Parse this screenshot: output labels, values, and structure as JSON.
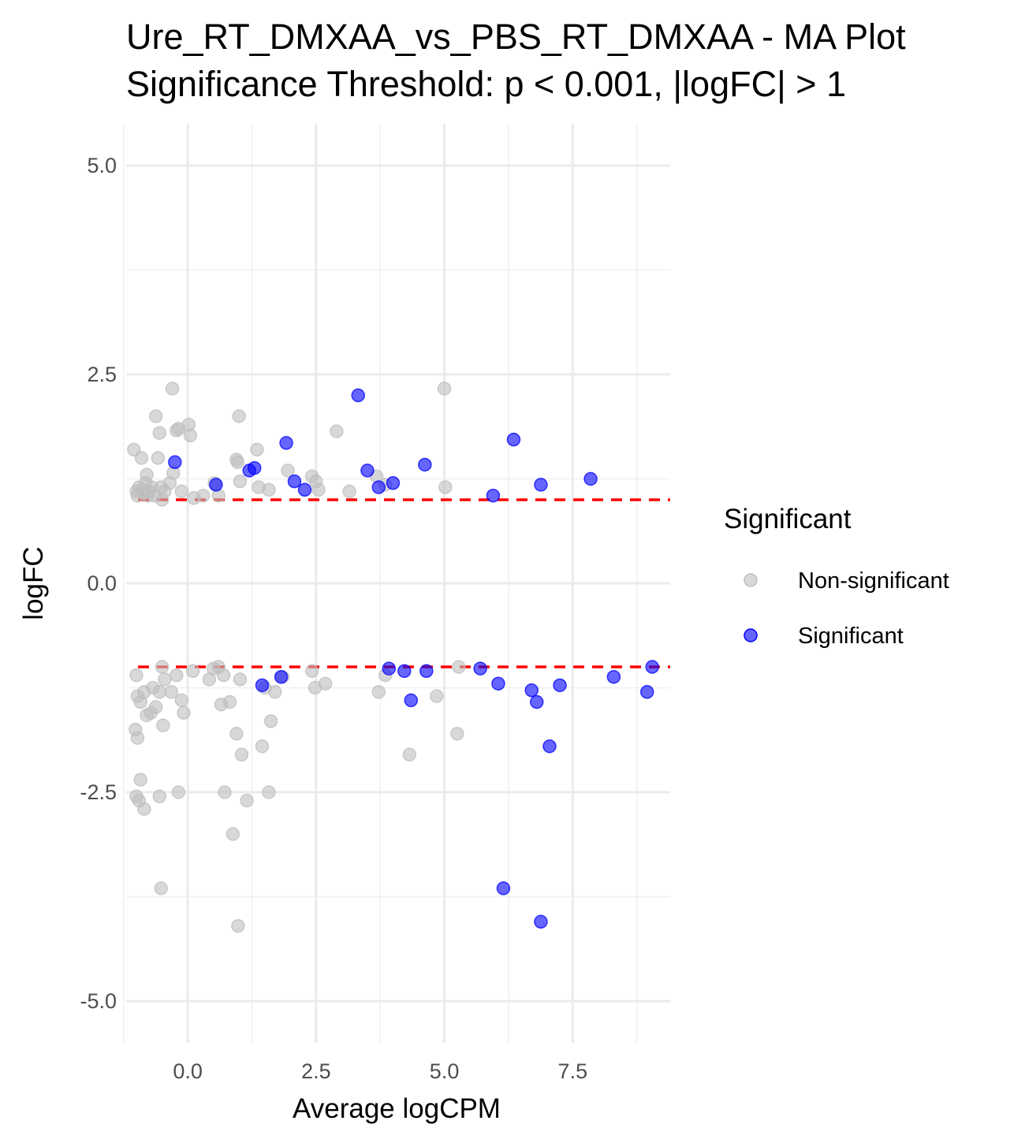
{
  "chart_data": {
    "type": "scatter",
    "title": "Ure_RT_DMXAA_vs_PBS_RT_DMXAA - MA Plot",
    "subtitle": "Significance Threshold: p < 0.001, |logFC| > 1",
    "xlabel": "Average logCPM",
    "ylabel": "logFC",
    "xlim": [
      -1.2,
      9.4
    ],
    "ylim": [
      -5.5,
      5.5
    ],
    "x_ticks": [
      0.0,
      2.5,
      5.0,
      7.5
    ],
    "x_tick_labels": [
      "0.0",
      "2.5",
      "5.0",
      "7.5"
    ],
    "y_ticks": [
      -5.0,
      -2.5,
      0.0,
      2.5,
      5.0
    ],
    "y_tick_labels": [
      "-5.0",
      "-2.5",
      "0.0",
      "2.5",
      "5.0"
    ],
    "grid": true,
    "threshold_lines": [
      1,
      -1
    ],
    "threshold_color": "#ff0000",
    "legend": {
      "title": "Significant",
      "position": "right",
      "entries": [
        {
          "name": "Non-significant",
          "color": "#bebebe"
        },
        {
          "name": "Significant",
          "color": "#0000ff"
        }
      ]
    },
    "series": [
      {
        "name": "Non-significant",
        "color": "#bebebe",
        "points": [
          [
            -1.05,
            1.6
          ],
          [
            -1.0,
            1.1
          ],
          [
            -0.98,
            1.05
          ],
          [
            -0.95,
            1.15
          ],
          [
            -0.9,
            1.5
          ],
          [
            -0.88,
            1.12
          ],
          [
            -0.85,
            1.08
          ],
          [
            -0.82,
            1.2
          ],
          [
            -0.8,
            1.3
          ],
          [
            -0.78,
            1.05
          ],
          [
            -0.75,
            1.1
          ],
          [
            -0.7,
            1.15
          ],
          [
            -0.65,
            1.05
          ],
          [
            -0.62,
            2.0
          ],
          [
            -0.58,
            1.5
          ],
          [
            -0.55,
            1.8
          ],
          [
            -0.52,
            1.15
          ],
          [
            -0.5,
            1.0
          ],
          [
            -0.45,
            1.1
          ],
          [
            -0.35,
            1.2
          ],
          [
            -0.3,
            2.33
          ],
          [
            -0.28,
            1.32
          ],
          [
            -0.22,
            1.83
          ],
          [
            -0.18,
            1.85
          ],
          [
            -0.12,
            1.1
          ],
          [
            0.02,
            1.9
          ],
          [
            0.05,
            1.77
          ],
          [
            0.12,
            1.02
          ],
          [
            0.3,
            1.05
          ],
          [
            0.52,
            1.2
          ],
          [
            0.6,
            1.05
          ],
          [
            0.95,
            1.48
          ],
          [
            0.97,
            1.45
          ],
          [
            1.0,
            2.0
          ],
          [
            1.02,
            1.22
          ],
          [
            1.35,
            1.6
          ],
          [
            1.38,
            1.15
          ],
          [
            1.58,
            1.12
          ],
          [
            1.95,
            1.35
          ],
          [
            2.42,
            1.28
          ],
          [
            2.5,
            1.22
          ],
          [
            2.55,
            1.12
          ],
          [
            2.9,
            1.82
          ],
          [
            3.15,
            1.1
          ],
          [
            3.68,
            1.28
          ],
          [
            3.85,
            1.18
          ],
          [
            5.0,
            2.33
          ],
          [
            5.02,
            1.15
          ],
          [
            -1.0,
            -1.1
          ],
          [
            -0.98,
            -1.35
          ],
          [
            -0.92,
            -1.42
          ],
          [
            -0.85,
            -1.3
          ],
          [
            -0.8,
            -1.58
          ],
          [
            -0.72,
            -1.55
          ],
          [
            -0.68,
            -1.25
          ],
          [
            -0.62,
            -1.48
          ],
          [
            -0.55,
            -1.3
          ],
          [
            -0.5,
            -1.0
          ],
          [
            -0.48,
            -1.7
          ],
          [
            -0.45,
            -1.15
          ],
          [
            -0.32,
            -1.3
          ],
          [
            -0.22,
            -1.1
          ],
          [
            -0.12,
            -1.4
          ],
          [
            -0.08,
            -1.55
          ],
          [
            0.1,
            -1.05
          ],
          [
            0.42,
            -1.15
          ],
          [
            0.5,
            -1.02
          ],
          [
            0.6,
            -1.0
          ],
          [
            0.65,
            -1.45
          ],
          [
            0.7,
            -1.1
          ],
          [
            0.82,
            -1.42
          ],
          [
            0.95,
            -1.8
          ],
          [
            1.02,
            -1.15
          ],
          [
            1.05,
            -2.05
          ],
          [
            1.45,
            -1.95
          ],
          [
            1.5,
            -1.25
          ],
          [
            1.62,
            -1.65
          ],
          [
            1.7,
            -1.3
          ],
          [
            1.85,
            -1.12
          ],
          [
            2.42,
            -1.05
          ],
          [
            2.48,
            -1.25
          ],
          [
            2.68,
            -1.2
          ],
          [
            3.72,
            -1.3
          ],
          [
            3.85,
            -1.1
          ],
          [
            4.32,
            -2.05
          ],
          [
            4.85,
            -1.35
          ],
          [
            5.25,
            -1.8
          ],
          [
            5.28,
            -1.0
          ],
          [
            -1.02,
            -1.75
          ],
          [
            -0.98,
            -1.85
          ],
          [
            -0.92,
            -2.35
          ],
          [
            -0.95,
            -2.6
          ],
          [
            -1.0,
            -2.55
          ],
          [
            -0.85,
            -2.7
          ],
          [
            -0.55,
            -2.55
          ],
          [
            -0.18,
            -2.5
          ],
          [
            0.72,
            -2.5
          ],
          [
            0.88,
            -3.0
          ],
          [
            1.15,
            -2.6
          ],
          [
            1.58,
            -2.5
          ],
          [
            -0.52,
            -3.65
          ],
          [
            0.98,
            -4.1
          ]
        ]
      },
      {
        "name": "Significant",
        "color": "#0000ff",
        "points": [
          [
            -0.25,
            1.45
          ],
          [
            0.55,
            1.18
          ],
          [
            1.2,
            1.35
          ],
          [
            1.3,
            1.38
          ],
          [
            1.92,
            1.68
          ],
          [
            2.08,
            1.22
          ],
          [
            2.28,
            1.12
          ],
          [
            3.32,
            2.25
          ],
          [
            3.5,
            1.35
          ],
          [
            3.72,
            1.15
          ],
          [
            4.0,
            1.2
          ],
          [
            4.62,
            1.42
          ],
          [
            5.95,
            1.05
          ],
          [
            6.35,
            1.72
          ],
          [
            6.88,
            1.18
          ],
          [
            7.85,
            1.25
          ],
          [
            1.45,
            -1.22
          ],
          [
            1.82,
            -1.12
          ],
          [
            3.92,
            -1.02
          ],
          [
            4.22,
            -1.05
          ],
          [
            4.35,
            -1.4
          ],
          [
            4.65,
            -1.05
          ],
          [
            5.7,
            -1.02
          ],
          [
            6.05,
            -1.2
          ],
          [
            6.7,
            -1.28
          ],
          [
            6.8,
            -1.42
          ],
          [
            7.05,
            -1.95
          ],
          [
            7.25,
            -1.22
          ],
          [
            8.3,
            -1.12
          ],
          [
            8.95,
            -1.3
          ],
          [
            9.05,
            -1.0
          ],
          [
            6.15,
            -3.65
          ],
          [
            6.88,
            -4.05
          ]
        ]
      }
    ]
  }
}
